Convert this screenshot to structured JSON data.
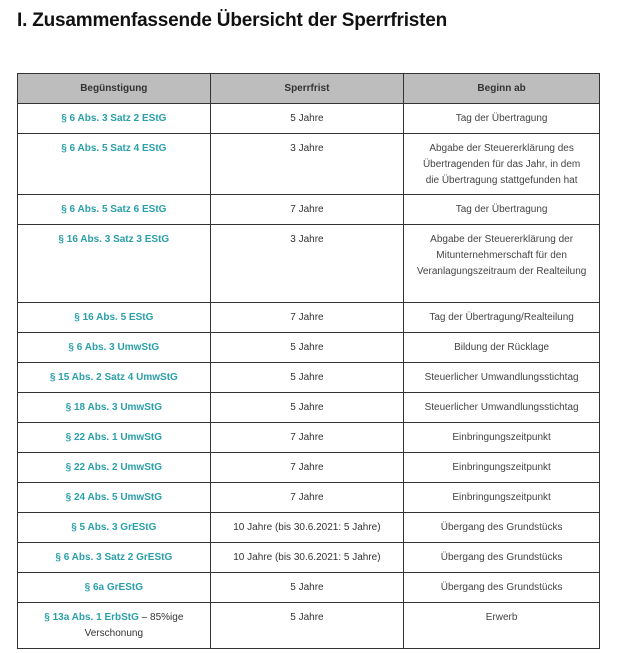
{
  "title": "I. Zusammenfassende Übersicht der Sperrfristen",
  "colors": {
    "link": "#2a9fa8",
    "header_bg": "#bdbdbd"
  },
  "table": {
    "headers": [
      "Begünstigung",
      "Sperrfrist",
      "Beginn ab"
    ],
    "rows": [
      {
        "norm": "§ 6 Abs. 3 Satz 2 EStG",
        "suffix": "",
        "frist": "5 Jahre",
        "beginn": "Tag der Übertragung"
      },
      {
        "norm": "§ 6 Abs. 5 Satz 4 EStG",
        "suffix": "",
        "frist": "3 Jahre",
        "beginn": "Abgabe der Steuererklärung des Übertragenden für das Jahr, in dem die Übertragung stattgefunden hat"
      },
      {
        "norm": "§ 6 Abs. 5 Satz 6 EStG",
        "suffix": "",
        "frist": "7 Jahre",
        "beginn": "Tag der Übertragung"
      },
      {
        "norm": "§ 16 Abs. 3 Satz 3 EStG",
        "suffix": "",
        "frist": "3 Jahre",
        "beginn": "Abgabe der Steuererklärung der Mitunternehmerschaft für den Veranlagungszeitraum der Realteilung"
      },
      {
        "norm": "§ 16 Abs. 5 EStG",
        "suffix": "",
        "frist": "7 Jahre",
        "beginn": "Tag der Übertragung/Realteilung"
      },
      {
        "norm": "§ 6 Abs. 3 UmwStG",
        "suffix": "",
        "frist": "5 Jahre",
        "beginn": "Bildung der Rücklage"
      },
      {
        "norm": "§ 15 Abs. 2 Satz 4 UmwStG",
        "suffix": "",
        "frist": "5 Jahre",
        "beginn": "Steuerlicher Umwandlungsstichtag"
      },
      {
        "norm": "§ 18 Abs. 3 UmwStG",
        "suffix": "",
        "frist": "5 Jahre",
        "beginn": "Steuerlicher Umwandlungsstichtag"
      },
      {
        "norm": "§ 22 Abs. 1 UmwStG",
        "suffix": "",
        "frist": "7 Jahre",
        "beginn": "Einbringungszeitpunkt"
      },
      {
        "norm": "§ 22 Abs. 2 UmwStG",
        "suffix": "",
        "frist": "7 Jahre",
        "beginn": "Einbringungszeitpunkt"
      },
      {
        "norm": "§ 24 Abs. 5 UmwStG",
        "suffix": "",
        "frist": "7 Jahre",
        "beginn": "Einbringungszeitpunkt"
      },
      {
        "norm": "§ 5 Abs. 3 GrEStG",
        "suffix": "",
        "frist": "10 Jahre (bis 30.6.2021: 5 Jahre)",
        "beginn": "Übergang des Grundstücks"
      },
      {
        "norm": "§ 6 Abs. 3 Satz 2 GrEStG",
        "suffix": "",
        "frist": "10 Jahre (bis 30.6.2021: 5 Jahre)",
        "beginn": "Übergang des Grundstücks"
      },
      {
        "norm": "§ 6a GrEStG",
        "suffix": "",
        "frist": "5 Jahre",
        "beginn": "Übergang des Grundstücks"
      },
      {
        "norm": "§ 13a Abs. 1 ErbStG",
        "suffix": " – 85%ige Verschonung",
        "frist": "5 Jahre",
        "beginn": "Erwerb"
      }
    ]
  }
}
